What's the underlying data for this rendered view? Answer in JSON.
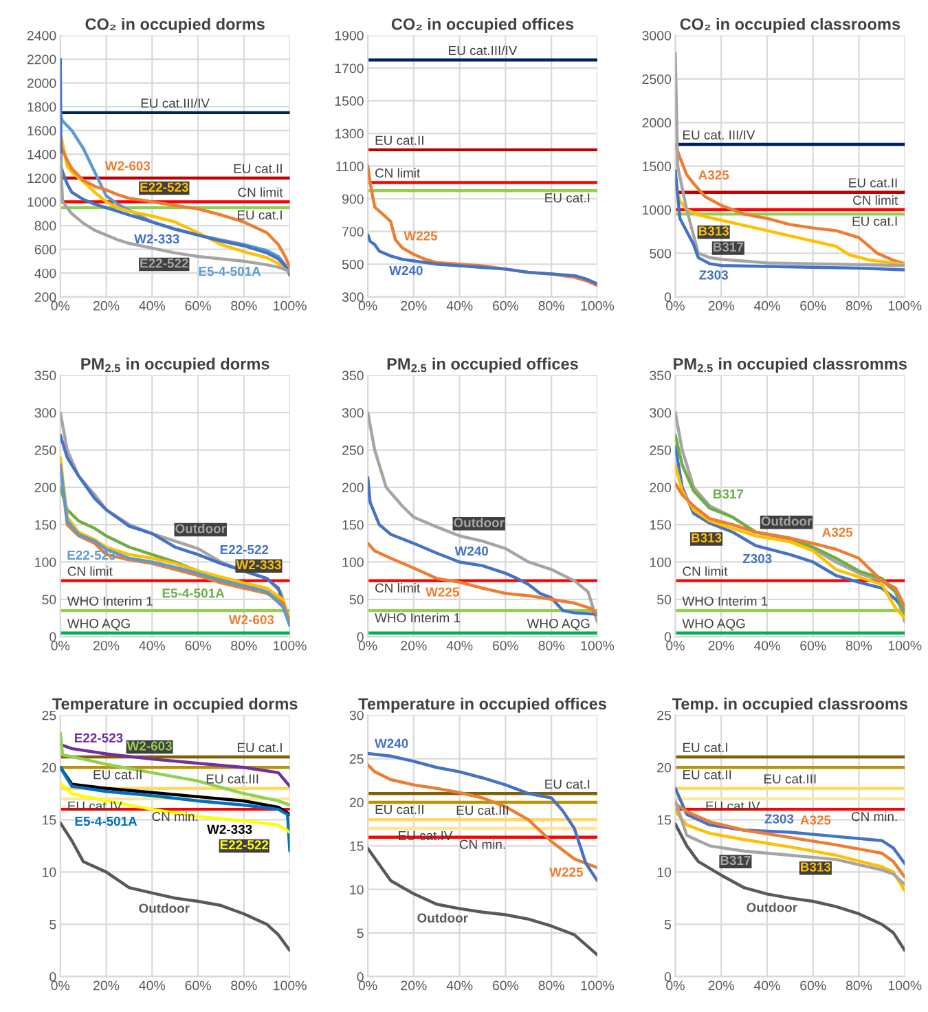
{
  "chart_data": [
    {
      "type": "line",
      "title": "CO₂ in occupied dorms",
      "xlim": [
        0,
        100
      ],
      "xticks": [
        {
          "value": 0,
          "label": "0%"
        },
        {
          "value": 20,
          "label": "20%"
        },
        {
          "value": 40,
          "label": "40%"
        },
        {
          "value": 60,
          "label": "60%"
        },
        {
          "value": 80,
          "label": "80%"
        },
        {
          "value": 100,
          "label": "100%"
        }
      ],
      "ylim": [
        200,
        2400
      ],
      "yticks": [
        200,
        400,
        600,
        800,
        1000,
        1200,
        1400,
        1600,
        1800,
        2000,
        2200,
        2400
      ],
      "grid": true,
      "series": [
        {
          "name": "E5-4-501A",
          "color": "#5b9bd5",
          "x": [
            0,
            1,
            3,
            5,
            10,
            15,
            20,
            25,
            30,
            40,
            50,
            60,
            70,
            80,
            90,
            95,
            98,
            100
          ],
          "values": [
            1720,
            1680,
            1640,
            1600,
            1450,
            1250,
            1050,
            980,
            930,
            830,
            770,
            720,
            680,
            640,
            590,
            540,
            470,
            380
          ]
        },
        {
          "name": "E22-523",
          "color": "#ffc000",
          "x": [
            0,
            3,
            5,
            10,
            15,
            20,
            25,
            30,
            40,
            50,
            60,
            70,
            80,
            90,
            95,
            98,
            100
          ],
          "values": [
            1580,
            1300,
            1250,
            1170,
            1080,
            1000,
            950,
            920,
            880,
            830,
            740,
            640,
            580,
            530,
            480,
            440,
            400
          ]
        },
        {
          "name": "W2-603",
          "color": "#ed7d31",
          "x": [
            0,
            3,
            5,
            10,
            15,
            20,
            25,
            30,
            40,
            50,
            60,
            70,
            80,
            90,
            95,
            98,
            100
          ],
          "values": [
            1480,
            1350,
            1280,
            1180,
            1130,
            1100,
            1060,
            1030,
            1000,
            970,
            940,
            890,
            830,
            740,
            640,
            540,
            450
          ]
        },
        {
          "name": "W2-333",
          "color": "#4472c4",
          "x": [
            0,
            0.3,
            1,
            3,
            5,
            10,
            15,
            20,
            25,
            30,
            40,
            50,
            60,
            70,
            80,
            90,
            95,
            98,
            100
          ],
          "values": [
            2200,
            1300,
            1250,
            1150,
            1080,
            1020,
            980,
            950,
            920,
            890,
            830,
            770,
            720,
            670,
            630,
            570,
            520,
            460,
            400
          ]
        },
        {
          "name": "E22-522",
          "color": "#a5a5a5",
          "x": [
            0,
            1,
            3,
            5,
            10,
            15,
            20,
            25,
            30,
            40,
            50,
            60,
            70,
            80,
            90,
            95,
            98,
            100
          ],
          "values": [
            1400,
            1000,
            950,
            900,
            820,
            760,
            720,
            680,
            650,
            610,
            570,
            540,
            520,
            500,
            470,
            450,
            430,
            410
          ]
        }
      ],
      "ref_lines": [
        {
          "axis": "y",
          "value": 1750,
          "label": "EU cat.III/IV",
          "color": "#002060"
        },
        {
          "axis": "y",
          "value": 1200,
          "label": "EU cat.II",
          "color": "#c00000"
        },
        {
          "axis": "y",
          "value": 1000,
          "label": "CN limit",
          "color": "#ff0000"
        },
        {
          "axis": "y",
          "value": 950,
          "label": "EU cat.I",
          "color": "#92d050"
        }
      ]
    },
    {
      "type": "line",
      "title": "CO₂ in occupied offices",
      "xlim": [
        0,
        100
      ],
      "xticks": [
        {
          "value": 0,
          "label": "0%"
        },
        {
          "value": 20,
          "label": "20%"
        },
        {
          "value": 40,
          "label": "40%"
        },
        {
          "value": 60,
          "label": "60%"
        },
        {
          "value": 80,
          "label": "80%"
        },
        {
          "value": 100,
          "label": "100%"
        }
      ],
      "ylim": [
        300,
        1900
      ],
      "yticks": [
        300,
        500,
        700,
        900,
        1100,
        1300,
        1500,
        1700,
        1900
      ],
      "grid": true,
      "series": [
        {
          "name": "W225",
          "color": "#ed7d31",
          "x": [
            0,
            1,
            3,
            7,
            10,
            12,
            15,
            20,
            25,
            30,
            40,
            50,
            60,
            70,
            80,
            90,
            95,
            100
          ],
          "values": [
            1100,
            1000,
            850,
            800,
            760,
            650,
            600,
            560,
            530,
            510,
            500,
            490,
            470,
            450,
            440,
            420,
            400,
            370
          ]
        },
        {
          "name": "W240",
          "color": "#4472c4",
          "x": [
            0,
            1,
            3,
            5,
            10,
            15,
            20,
            25,
            30,
            40,
            50,
            60,
            70,
            80,
            90,
            95,
            100
          ],
          "values": [
            680,
            640,
            620,
            580,
            550,
            530,
            520,
            510,
            500,
            490,
            480,
            470,
            450,
            440,
            430,
            410,
            380
          ]
        }
      ],
      "ref_lines": [
        {
          "axis": "y",
          "value": 1750,
          "label": "EU cat.III/IV",
          "color": "#002060"
        },
        {
          "axis": "y",
          "value": 1200,
          "label": "EU cat.II",
          "color": "#c00000"
        },
        {
          "axis": "y",
          "value": 1000,
          "label": "CN limit",
          "color": "#ff0000"
        },
        {
          "axis": "y",
          "value": 950,
          "label": "EU cat.I",
          "color": "#92d050"
        }
      ]
    },
    {
      "type": "line",
      "title": "CO₂ in occupied classrooms",
      "xlim": [
        0,
        100
      ],
      "xticks": [
        {
          "value": 0,
          "label": "0%"
        },
        {
          "value": 20,
          "label": "20%"
        },
        {
          "value": 40,
          "label": "40%"
        },
        {
          "value": 60,
          "label": "60%"
        },
        {
          "value": 80,
          "label": "80%"
        },
        {
          "value": 100,
          "label": "100%"
        }
      ],
      "ylim": [
        0,
        3000
      ],
      "yticks": [
        0,
        500,
        1000,
        1500,
        2000,
        2500,
        3000
      ],
      "grid": true,
      "series": [
        {
          "name": "A325",
          "color": "#ed7d31",
          "x": [
            0,
            2,
            5,
            8,
            13,
            20,
            30,
            40,
            50,
            60,
            70,
            80,
            88,
            95,
            100
          ],
          "values": [
            1750,
            1600,
            1400,
            1300,
            1150,
            1050,
            950,
            900,
            830,
            790,
            760,
            680,
            500,
            420,
            380
          ]
        },
        {
          "name": "B313",
          "color": "#ffc000",
          "x": [
            0,
            2,
            5,
            10,
            20,
            30,
            40,
            50,
            60,
            70,
            76,
            85,
            95,
            100
          ],
          "values": [
            1280,
            1100,
            1000,
            940,
            880,
            820,
            760,
            700,
            640,
            580,
            480,
            420,
            390,
            370
          ]
        },
        {
          "name": "B317",
          "color": "#a5a5a5",
          "x": [
            0,
            1,
            5,
            8,
            10,
            15,
            20,
            30,
            40,
            60,
            80,
            100
          ],
          "values": [
            2800,
            1500,
            1000,
            700,
            500,
            450,
            430,
            410,
            390,
            380,
            370,
            360
          ]
        },
        {
          "name": "Z303",
          "color": "#4472c4",
          "x": [
            0,
            2,
            5,
            8,
            10,
            15,
            20,
            40,
            60,
            80,
            100
          ],
          "values": [
            1450,
            900,
            750,
            600,
            450,
            380,
            360,
            350,
            340,
            330,
            310
          ]
        }
      ],
      "ref_lines": [
        {
          "axis": "y",
          "value": 1750,
          "label": "EU cat. III/IV",
          "color": "#002060"
        },
        {
          "axis": "y",
          "value": 1200,
          "label": "EU cat.II",
          "color": "#c00000"
        },
        {
          "axis": "y",
          "value": 1000,
          "label": "CN limit",
          "color": "#ff0000"
        },
        {
          "axis": "y",
          "value": 950,
          "label": "EU cat.I",
          "color": "#92d050"
        }
      ]
    },
    {
      "type": "line",
      "title": "PM$_{2.5}$ in occupied dorms",
      "xlim": [
        0,
        100
      ],
      "xticks": [
        {
          "value": 0,
          "label": "0%"
        },
        {
          "value": 20,
          "label": "20%"
        },
        {
          "value": 40,
          "label": "40%"
        },
        {
          "value": 60,
          "label": "60%"
        },
        {
          "value": 80,
          "label": "80%"
        },
        {
          "value": 100,
          "label": "100%"
        }
      ],
      "ylim": [
        0,
        350
      ],
      "yticks": [
        0,
        50,
        100,
        150,
        200,
        250,
        300,
        350
      ],
      "grid": true,
      "series": [
        {
          "name": "Outdoor",
          "color": "#a5a5a5",
          "x": [
            0,
            3,
            8,
            15,
            20,
            30,
            40,
            50,
            60,
            70,
            80,
            90,
            96,
            100
          ],
          "values": [
            300,
            250,
            215,
            190,
            170,
            150,
            138,
            128,
            118,
            100,
            88,
            78,
            60,
            20
          ]
        },
        {
          "name": "E22-522",
          "color": "#4472c4",
          "x": [
            0,
            3,
            8,
            15,
            20,
            30,
            40,
            50,
            60,
            70,
            80,
            90,
            95,
            100
          ],
          "values": [
            270,
            240,
            215,
            185,
            170,
            148,
            138,
            120,
            110,
            98,
            88,
            78,
            65,
            15
          ]
        },
        {
          "name": "E5-4-501A",
          "color": "#70ad47",
          "x": [
            0,
            3,
            8,
            15,
            20,
            30,
            40,
            50,
            60,
            70,
            80,
            90,
            97,
            100
          ],
          "values": [
            200,
            170,
            155,
            145,
            135,
            120,
            110,
            100,
            88,
            78,
            70,
            60,
            45,
            20
          ]
        },
        {
          "name": "W2-333",
          "color": "#ffc000",
          "x": [
            0,
            3,
            8,
            15,
            20,
            30,
            40,
            50,
            60,
            70,
            80,
            90,
            97,
            100
          ],
          "values": [
            240,
            160,
            140,
            130,
            120,
            110,
            105,
            98,
            88,
            80,
            72,
            65,
            50,
            20
          ]
        },
        {
          "name": "W2-603",
          "color": "#ed7d31",
          "x": [
            0,
            3,
            8,
            15,
            20,
            30,
            40,
            50,
            60,
            70,
            80,
            90,
            97,
            100
          ],
          "values": [
            230,
            150,
            135,
            125,
            110,
            103,
            98,
            90,
            82,
            72,
            65,
            58,
            45,
            20
          ]
        },
        {
          "name": "E22-523",
          "color": "#5b9bd5",
          "x": [
            0,
            3,
            8,
            15,
            20,
            30,
            40,
            50,
            60,
            70,
            80,
            90,
            97,
            100
          ],
          "values": [
            230,
            155,
            137,
            128,
            117,
            105,
            100,
            93,
            85,
            75,
            68,
            60,
            40,
            15
          ]
        }
      ],
      "ref_lines": [
        {
          "axis": "y",
          "value": 75,
          "label": "CN limit",
          "color": "#ff0000"
        },
        {
          "axis": "y",
          "value": 35,
          "label": "WHO Interim 1",
          "color": "#92d050"
        },
        {
          "axis": "y",
          "value": 5,
          "label": "WHO AQG",
          "color": "#00b050"
        }
      ]
    },
    {
      "type": "line",
      "title": "PM$_{2.5}$ in occupied offices",
      "xlim": [
        0,
        100
      ],
      "xticks": [
        {
          "value": 0,
          "label": "0%"
        },
        {
          "value": 20,
          "label": "20%"
        },
        {
          "value": 40,
          "label": "40%"
        },
        {
          "value": 60,
          "label": "60%"
        },
        {
          "value": 80,
          "label": "80%"
        },
        {
          "value": 100,
          "label": "100%"
        }
      ],
      "ylim": [
        0,
        350
      ],
      "yticks": [
        0,
        50,
        100,
        150,
        200,
        250,
        300,
        350
      ],
      "grid": true,
      "series": [
        {
          "name": "Outdoor",
          "color": "#a5a5a5",
          "x": [
            0,
            3,
            8,
            15,
            20,
            30,
            40,
            50,
            60,
            70,
            80,
            90,
            96,
            100
          ],
          "values": [
            300,
            250,
            200,
            175,
            160,
            147,
            135,
            128,
            118,
            100,
            90,
            75,
            60,
            20
          ]
        },
        {
          "name": "W240",
          "color": "#4472c4",
          "x": [
            0,
            1,
            5,
            10,
            20,
            30,
            40,
            50,
            60,
            65,
            70,
            75,
            80,
            85,
            90,
            100
          ],
          "values": [
            213,
            180,
            150,
            137,
            125,
            112,
            100,
            95,
            85,
            78,
            70,
            58,
            52,
            35,
            32,
            30
          ]
        },
        {
          "name": "W225",
          "color": "#ed7d31",
          "x": [
            0,
            3,
            10,
            20,
            25,
            30,
            40,
            50,
            60,
            70,
            80,
            90,
            97,
            100
          ],
          "values": [
            125,
            115,
            105,
            92,
            85,
            78,
            73,
            65,
            58,
            55,
            50,
            45,
            38,
            30
          ]
        }
      ],
      "ref_lines": [
        {
          "axis": "y",
          "value": 75,
          "label": "CN limit",
          "color": "#ff0000"
        },
        {
          "axis": "y",
          "value": 35,
          "label": "WHO Interim 1",
          "color": "#92d050"
        },
        {
          "axis": "y",
          "value": 5,
          "label": "WHO AQG",
          "color": "#00b050"
        }
      ]
    },
    {
      "type": "line",
      "title": "PM$_{2.5}$ in occupied classromms",
      "xlim": [
        0,
        100
      ],
      "xticks": [
        {
          "value": 0,
          "label": "0%"
        },
        {
          "value": 20,
          "label": "20%"
        },
        {
          "value": 40,
          "label": "40%"
        },
        {
          "value": 60,
          "label": "60%"
        },
        {
          "value": 80,
          "label": "80%"
        },
        {
          "value": 100,
          "label": "100%"
        }
      ],
      "ylim": [
        0,
        350
      ],
      "yticks": [
        0,
        50,
        100,
        150,
        200,
        250,
        300,
        350
      ],
      "grid": true,
      "series": [
        {
          "name": "Outdoor",
          "color": "#a5a5a5",
          "x": [
            0,
            3,
            8,
            15,
            25,
            35,
            50,
            60,
            70,
            80,
            90,
            96,
            100
          ],
          "values": [
            300,
            250,
            200,
            175,
            160,
            140,
            130,
            118,
            100,
            85,
            75,
            60,
            20
          ]
        },
        {
          "name": "Z303",
          "color": "#4472c4",
          "x": [
            0,
            3,
            8,
            15,
            25,
            35,
            50,
            60,
            70,
            80,
            90,
            96,
            100
          ],
          "values": [
            255,
            200,
            165,
            152,
            140,
            122,
            110,
            100,
            82,
            73,
            65,
            50,
            35
          ]
        },
        {
          "name": "B317",
          "color": "#70ad47",
          "x": [
            0,
            3,
            8,
            15,
            25,
            35,
            50,
            60,
            70,
            80,
            90,
            96,
            100
          ],
          "values": [
            270,
            230,
            195,
            172,
            160,
            140,
            132,
            120,
            105,
            88,
            78,
            60,
            30
          ]
        },
        {
          "name": "B313",
          "color": "#ffc000",
          "x": [
            0,
            3,
            8,
            15,
            25,
            35,
            50,
            60,
            70,
            80,
            90,
            96,
            100
          ],
          "values": [
            230,
            195,
            170,
            155,
            145,
            135,
            127,
            115,
            90,
            80,
            70,
            38,
            25
          ]
        },
        {
          "name": "A325",
          "color": "#ed7d31",
          "x": [
            0,
            3,
            8,
            15,
            25,
            35,
            50,
            60,
            70,
            80,
            90,
            96,
            100
          ],
          "values": [
            205,
            190,
            175,
            158,
            150,
            140,
            132,
            125,
            117,
            105,
            75,
            65,
            40
          ]
        }
      ],
      "ref_lines": [
        {
          "axis": "y",
          "value": 75,
          "label": "CN limit",
          "color": "#ff0000"
        },
        {
          "axis": "y",
          "value": 35,
          "label": "WHO Interim 1",
          "color": "#92d050"
        },
        {
          "axis": "y",
          "value": 5,
          "label": "WHO AQG",
          "color": "#00b050"
        }
      ]
    },
    {
      "type": "line",
      "title": "Temperature in occupied dorms",
      "xlim": [
        0,
        100
      ],
      "xticks": [
        {
          "value": 0,
          "label": "0%"
        },
        {
          "value": 20,
          "label": "20%"
        },
        {
          "value": 40,
          "label": "40%"
        },
        {
          "value": 60,
          "label": "60%"
        },
        {
          "value": 80,
          "label": "80%"
        },
        {
          "value": 100,
          "label": "100%"
        }
      ],
      "ylim": [
        0,
        25
      ],
      "yticks": [
        0,
        5,
        10,
        15,
        20,
        25
      ],
      "grid": true,
      "series": [
        {
          "name": "E22-523",
          "color": "#7030a0",
          "x": [
            0,
            5,
            20,
            40,
            60,
            80,
            95,
            100
          ],
          "values": [
            22.2,
            21.8,
            21.3,
            20.8,
            20.4,
            20,
            19.5,
            18.2
          ]
        },
        {
          "name": "W2-603",
          "color": "#92d050",
          "x": [
            0,
            1,
            10,
            20,
            40,
            60,
            80,
            95,
            100
          ],
          "values": [
            23.3,
            21.2,
            20.8,
            20.3,
            19.5,
            18.7,
            17.5,
            16.8,
            16.4
          ]
        },
        {
          "name": "W2-333",
          "color": "#000000",
          "x": [
            0,
            5,
            20,
            40,
            60,
            80,
            95,
            100
          ],
          "values": [
            20,
            18.4,
            18,
            17.6,
            17.2,
            16.8,
            16.2,
            15.5
          ]
        },
        {
          "name": "E5-4-501A",
          "color": "#0070c0",
          "x": [
            0,
            5,
            20,
            40,
            60,
            80,
            95,
            99,
            100
          ],
          "values": [
            20,
            18.2,
            17.7,
            17.3,
            16.8,
            16.4,
            16,
            15.5,
            12
          ]
        },
        {
          "name": "E22-522",
          "color": "#ffff00",
          "x": [
            0,
            5,
            20,
            40,
            60,
            80,
            95,
            100
          ],
          "values": [
            18.5,
            17.5,
            16.8,
            16,
            15.3,
            14.9,
            14.5,
            13.8
          ]
        },
        {
          "name": "Outdoor",
          "color": "#595959",
          "x": [
            0,
            5,
            10,
            20,
            30,
            40,
            50,
            60,
            70,
            80,
            90,
            95,
            100
          ],
          "values": [
            14.7,
            13,
            11,
            10,
            8.5,
            8,
            7.5,
            7.2,
            6.8,
            6,
            5,
            4,
            2.5
          ]
        }
      ],
      "ref_lines": [
        {
          "axis": "y",
          "value": 21,
          "label": "EU cat.I",
          "color": "#7f6000"
        },
        {
          "axis": "y",
          "value": 20,
          "label": "EU cat.II",
          "color": "#bf9000"
        },
        {
          "axis": "y",
          "value": 18,
          "label": "EU cat.III",
          "color": "#ffd966"
        },
        {
          "axis": "y",
          "value": 17,
          "label": "EU cat.IV",
          "color": "#ffe699"
        },
        {
          "axis": "y",
          "value": 16,
          "label": "CN min.",
          "color": "#ff0000"
        }
      ]
    },
    {
      "type": "line",
      "title": "Temperature in occupied offices",
      "xlim": [
        0,
        100
      ],
      "xticks": [
        {
          "value": 0,
          "label": "0%"
        },
        {
          "value": 20,
          "label": "20%"
        },
        {
          "value": 40,
          "label": "40%"
        },
        {
          "value": 60,
          "label": "60%"
        },
        {
          "value": 80,
          "label": "80%"
        },
        {
          "value": 100,
          "label": "100%"
        }
      ],
      "ylim": [
        0,
        30
      ],
      "yticks": [
        0,
        5,
        10,
        15,
        20,
        25,
        30
      ],
      "grid": true,
      "series": [
        {
          "name": "W225",
          "color": "#ed7d31",
          "x": [
            0,
            3,
            10,
            20,
            30,
            40,
            50,
            60,
            70,
            80,
            90,
            100
          ],
          "values": [
            24.3,
            23.5,
            22.6,
            22,
            21.6,
            21.1,
            20.5,
            19.5,
            18,
            15.5,
            13.5,
            12.5
          ]
        },
        {
          "name": "W240",
          "color": "#4472c4",
          "x": [
            0,
            10,
            20,
            30,
            40,
            50,
            60,
            70,
            80,
            85,
            90,
            95,
            100
          ],
          "values": [
            25.6,
            25.3,
            24.7,
            24,
            23.5,
            22.8,
            22,
            21,
            20.5,
            19,
            17,
            13,
            11
          ]
        },
        {
          "name": "Outdoor",
          "color": "#595959",
          "x": [
            0,
            10,
            20,
            30,
            40,
            50,
            60,
            70,
            80,
            90,
            100
          ],
          "values": [
            14.7,
            11,
            9.5,
            8.3,
            7.8,
            7.4,
            7.1,
            6.6,
            5.8,
            4.8,
            2.5
          ]
        }
      ],
      "ref_lines": [
        {
          "axis": "y",
          "value": 21,
          "label": "EU cat.I",
          "color": "#7f6000"
        },
        {
          "axis": "y",
          "value": 20,
          "label": "EU cat.II",
          "color": "#bf9000"
        },
        {
          "axis": "y",
          "value": 18,
          "label": "EU cat.III",
          "color": "#ffd966"
        },
        {
          "axis": "y",
          "value": 17,
          "label": "EU cat.IV",
          "color": "#ffe699"
        },
        {
          "axis": "y",
          "value": 16,
          "label": "CN min.",
          "color": "#ff0000"
        }
      ]
    },
    {
      "type": "line",
      "title": "Temp. in occupied classrooms",
      "xlim": [
        0,
        100
      ],
      "xticks": [
        {
          "value": 0,
          "label": "0%"
        },
        {
          "value": 20,
          "label": "20%"
        },
        {
          "value": 40,
          "label": "40%"
        },
        {
          "value": 60,
          "label": "60%"
        },
        {
          "value": 80,
          "label": "80%"
        },
        {
          "value": 100,
          "label": "100%"
        }
      ],
      "ylim": [
        0,
        25
      ],
      "yticks": [
        0,
        5,
        10,
        15,
        20,
        25
      ],
      "grid": true,
      "series": [
        {
          "name": "Z303",
          "color": "#4472c4",
          "x": [
            0,
            5,
            15,
            30,
            50,
            70,
            90,
            95,
            100
          ],
          "values": [
            18,
            15.5,
            14.5,
            14,
            13.8,
            13.4,
            13,
            12.3,
            10.8
          ]
        },
        {
          "name": "A325",
          "color": "#ed7d31",
          "x": [
            0,
            5,
            15,
            30,
            50,
            70,
            90,
            95,
            100
          ],
          "values": [
            16.5,
            15.8,
            14.8,
            14,
            13.3,
            12.6,
            11.8,
            11,
            9.5
          ]
        },
        {
          "name": "B313",
          "color": "#ffc000",
          "x": [
            0,
            5,
            15,
            30,
            50,
            70,
            90,
            95,
            100
          ],
          "values": [
            15.8,
            14.5,
            13.7,
            13.1,
            12.4,
            11.6,
            10.5,
            10,
            8.2
          ]
        },
        {
          "name": "B317",
          "color": "#a5a5a5",
          "x": [
            0,
            5,
            15,
            30,
            50,
            70,
            90,
            95,
            100
          ],
          "values": [
            16.8,
            13.5,
            12.5,
            12,
            11.6,
            11.2,
            10.2,
            9.8,
            8.8
          ]
        },
        {
          "name": "Outdoor",
          "color": "#595959",
          "x": [
            0,
            5,
            10,
            20,
            30,
            40,
            50,
            60,
            70,
            80,
            90,
            95,
            100
          ],
          "values": [
            14.6,
            12.5,
            11,
            9.7,
            8.5,
            7.9,
            7.5,
            7.2,
            6.7,
            6,
            5,
            4.2,
            2.5
          ]
        }
      ],
      "ref_lines": [
        {
          "axis": "y",
          "value": 21,
          "label": "EU cat.I",
          "color": "#7f6000"
        },
        {
          "axis": "y",
          "value": 20,
          "label": "EU cat.II",
          "color": "#bf9000"
        },
        {
          "axis": "y",
          "value": 18,
          "label": "EU cat.III",
          "color": "#ffd966"
        },
        {
          "axis": "y",
          "value": 17,
          "label": "EU cat.IV",
          "color": "#ffe699"
        },
        {
          "axis": "y",
          "value": 16,
          "label": "CN min.",
          "color": "#ff0000"
        }
      ]
    }
  ]
}
